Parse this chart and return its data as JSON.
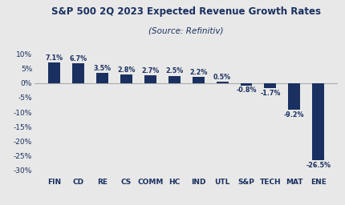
{
  "title": "S&P 500 2Q 2023 Expected Revenue Growth Rates",
  "subtitle": "(Source: Refinitiv)",
  "categories": [
    "FIN",
    "CD",
    "RE",
    "CS",
    "COMM",
    "HC",
    "IND",
    "UTL",
    "S&P",
    "TECH",
    "MAT",
    "ENE"
  ],
  "values": [
    7.1,
    6.7,
    3.5,
    2.8,
    2.7,
    2.5,
    2.2,
    0.5,
    -0.8,
    -1.7,
    -9.2,
    -26.5
  ],
  "labels": [
    "7.1%",
    "6.7%",
    "3.5%",
    "2.8%",
    "2.7%",
    "2.5%",
    "2.2%",
    "0.5%",
    "-0.8%",
    "-1.7%",
    "-9.2%",
    "-26.5%"
  ],
  "bar_color": "#1a3060",
  "text_color": "#1a3060",
  "background_color": "#e8e8e8",
  "ylim": [
    -32,
    13
  ],
  "yticks": [
    -30,
    -25,
    -20,
    -15,
    -10,
    -5,
    0,
    5,
    10
  ],
  "title_fontsize": 8.5,
  "subtitle_fontsize": 7.5,
  "label_fontsize": 5.8,
  "tick_fontsize": 6.5,
  "xtick_fontsize": 6.5
}
